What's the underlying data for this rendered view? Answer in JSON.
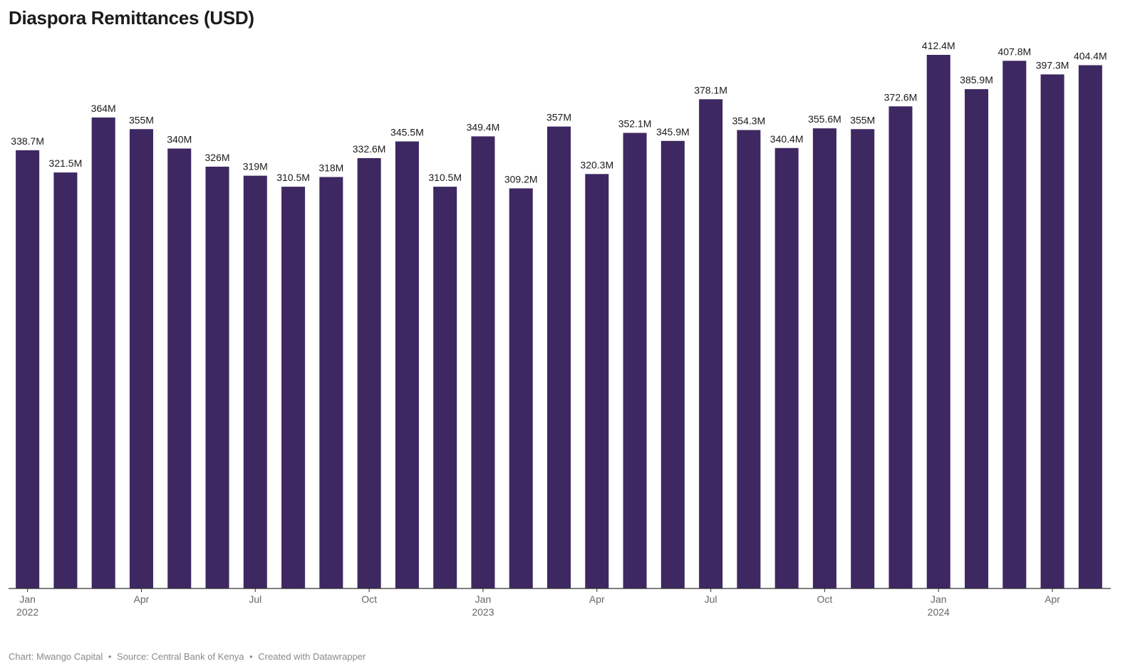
{
  "page": {
    "footer_chart": "Chart: Mwango Capital",
    "footer_source": "Source: Central Bank of Kenya",
    "footer_created": "Created with Datawrapper",
    "footer_separator": "•"
  },
  "chart_data": {
    "type": "bar",
    "title": "Diaspora Remittances (USD)",
    "xlabel": "",
    "ylabel": "",
    "ylim": [
      0,
      412.4
    ],
    "grid": false,
    "bar_color": "#3d2862",
    "categories": [
      "2022-01",
      "2022-02",
      "2022-03",
      "2022-04",
      "2022-05",
      "2022-06",
      "2022-07",
      "2022-08",
      "2022-09",
      "2022-10",
      "2022-11",
      "2022-12",
      "2023-01",
      "2023-02",
      "2023-03",
      "2023-04",
      "2023-05",
      "2023-06",
      "2023-07",
      "2023-08",
      "2023-09",
      "2023-10",
      "2023-11",
      "2023-12",
      "2024-01",
      "2024-02",
      "2024-03",
      "2024-04",
      "2024-05"
    ],
    "values": [
      338.7,
      321.5,
      364,
      355,
      340,
      326,
      319,
      310.5,
      318,
      332.6,
      345.5,
      310.5,
      349.4,
      309.2,
      357,
      320.3,
      352.1,
      345.9,
      378.1,
      354.3,
      340.4,
      355.6,
      355,
      372.6,
      412.4,
      385.9,
      407.8,
      397.3,
      404.4
    ],
    "value_labels": [
      "338.7M",
      "321.5M",
      "364M",
      "355M",
      "340M",
      "326M",
      "319M",
      "310.5M",
      "318M",
      "332.6M",
      "345.5M",
      "310.5M",
      "349.4M",
      "309.2M",
      "357M",
      "320.3M",
      "352.1M",
      "345.9M",
      "378.1M",
      "354.3M",
      "340.4M",
      "355.6M",
      "355M",
      "372.6M",
      "412.4M",
      "385.9M",
      "407.8M",
      "397.3M",
      "404.4M"
    ],
    "x_ticks": [
      {
        "index": 0,
        "label": "Jan",
        "year": "2022"
      },
      {
        "index": 3,
        "label": "Apr",
        "year": ""
      },
      {
        "index": 6,
        "label": "Jul",
        "year": ""
      },
      {
        "index": 9,
        "label": "Oct",
        "year": ""
      },
      {
        "index": 12,
        "label": "Jan",
        "year": "2023"
      },
      {
        "index": 15,
        "label": "Apr",
        "year": ""
      },
      {
        "index": 18,
        "label": "Jul",
        "year": ""
      },
      {
        "index": 21,
        "label": "Oct",
        "year": ""
      },
      {
        "index": 24,
        "label": "Jan",
        "year": "2024"
      },
      {
        "index": 27,
        "label": "Apr",
        "year": ""
      }
    ]
  }
}
